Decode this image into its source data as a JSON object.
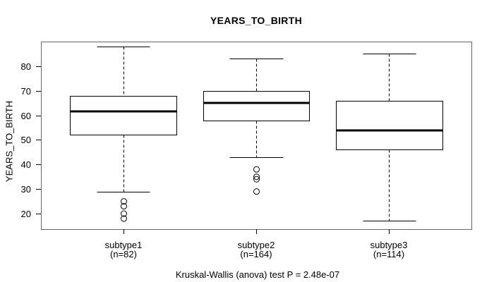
{
  "chart_data": {
    "type": "boxplot",
    "title": "YEARS_TO_BIRTH",
    "ylabel": "YEARS_TO_BIRTH",
    "footnote": "Kruskal-Wallis (anova) test P = 2.48e-07",
    "yticks": [
      20,
      30,
      40,
      50,
      60,
      70,
      80
    ],
    "ylim": [
      13.7,
      90.0
    ],
    "xlim": [
      0.38,
      3.62
    ],
    "grid": false,
    "legend": "none",
    "box_color": "#000000",
    "frame_color": "#666666",
    "groups": [
      {
        "label": "subtype1",
        "count_label": "(n=82)",
        "n": 82,
        "whisker_low": 29,
        "q1": 52,
        "median": 61.5,
        "q3": 68,
        "whisker_high": 88,
        "outliers": [
          25,
          23,
          20,
          18
        ]
      },
      {
        "label": "subtype2",
        "count_label": "(n=164)",
        "n": 164,
        "whisker_low": 43,
        "q1": 58,
        "median": 65,
        "q3": 70,
        "whisker_high": 83,
        "outliers": [
          38,
          35,
          34,
          29
        ]
      },
      {
        "label": "subtype3",
        "count_label": "(n=114)",
        "n": 114,
        "whisker_low": 17,
        "q1": 46,
        "median": 54,
        "q3": 66,
        "whisker_high": 85,
        "outliers": []
      }
    ]
  }
}
